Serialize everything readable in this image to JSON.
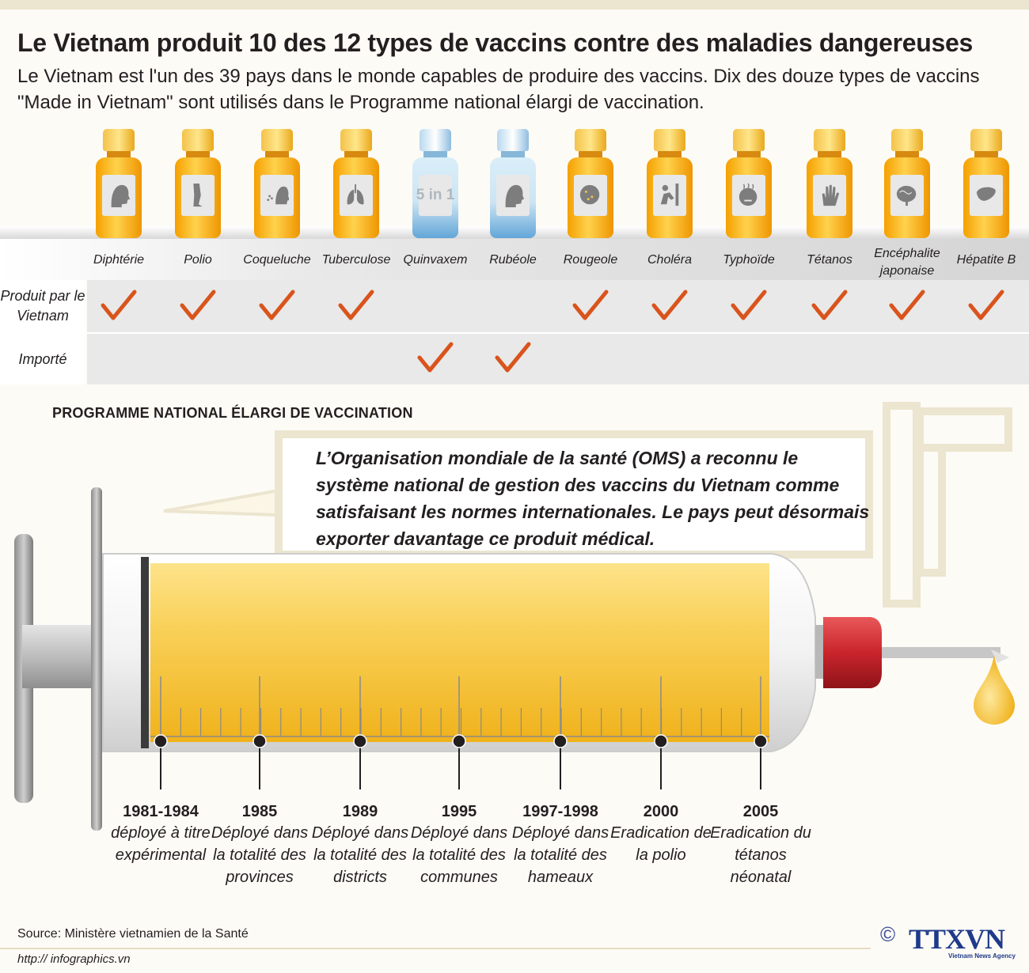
{
  "header": {
    "title": "Le Vietnam produit 10 des 12 types de vaccins contre des maladies dangereuses",
    "subtitle": "Le Vietnam est l'un des 39 pays dans le monde capables de produire des vaccins. Dix des douze types de vaccins \"Made in Vietnam\" sont utilisés dans le Programme national élargi de vaccination."
  },
  "vaccines": [
    {
      "name": "Diphtérie",
      "icon": "head-icon",
      "color": "orange",
      "produced": true,
      "imported": false
    },
    {
      "name": "Polio",
      "icon": "leg-icon",
      "color": "orange",
      "produced": true,
      "imported": false
    },
    {
      "name": "Coqueluche",
      "icon": "cough-icon",
      "color": "orange",
      "produced": true,
      "imported": false
    },
    {
      "name": "Tuberculose",
      "icon": "lungs-icon",
      "color": "orange",
      "produced": true,
      "imported": false
    },
    {
      "name": "Quinvaxem",
      "label_text": "5 in 1",
      "color": "blue",
      "produced": false,
      "imported": true
    },
    {
      "name": "Rubéole",
      "icon": "head-icon",
      "color": "blue",
      "produced": false,
      "imported": true
    },
    {
      "name": "Rougeole",
      "icon": "spotted-face-icon",
      "color": "orange",
      "produced": true,
      "imported": false
    },
    {
      "name": "Choléra",
      "icon": "sick-person-icon",
      "color": "orange",
      "produced": true,
      "imported": false
    },
    {
      "name": "Typhoïde",
      "icon": "fever-face-icon",
      "color": "orange",
      "produced": true,
      "imported": false
    },
    {
      "name": "Tétanos",
      "icon": "hand-icon",
      "color": "orange",
      "produced": true,
      "imported": false
    },
    {
      "name": "Encéphalite japonaise",
      "icon": "brain-icon",
      "color": "orange",
      "produced": true,
      "imported": false
    },
    {
      "name": "Hépatite B",
      "icon": "liver-icon",
      "color": "orange",
      "produced": true,
      "imported": false
    }
  ],
  "rows": {
    "produced_label": "Produit par le Vietnam",
    "imported_label": "Importé"
  },
  "program": {
    "title": "PROGRAMME NATIONAL ÉLARGI DE VACCINATION",
    "callout": "L’Organisation mondiale de la santé (OMS) a reconnu le système national de gestion des vaccins du Vietnam comme satisfaisant les normes internationales. Le pays peut désormais exporter davantage ce produit médical.",
    "milestones": [
      {
        "year": "1981-1984",
        "desc": "déployé à titre expérimental"
      },
      {
        "year": "1985",
        "desc": "Déployé dans la totalité des provinces"
      },
      {
        "year": "1989",
        "desc": "Déployé dans la totalité des districts"
      },
      {
        "year": "1995",
        "desc": "Déployé dans la totalité des communes"
      },
      {
        "year": "1997-1998",
        "desc": "Déployé dans la totalité des hameaux"
      },
      {
        "year": "2000",
        "desc": "Eradication de la polio"
      },
      {
        "year": "2005",
        "desc": "Eradication du tétanos néonatal"
      }
    ]
  },
  "footer": {
    "source": "Source: Ministère vietnamien de la Santé",
    "url": "http:// infographics.vn",
    "logo_copyright": "©",
    "logo_text": "TTXVN",
    "logo_sub": "Vietnam News Agency"
  },
  "colors": {
    "check": "#d9541c",
    "vial_orange": "#f5a000",
    "vial_blue": "#62a6d8",
    "syringe_fill": "#f6c233",
    "needle_cap": "#c9252c"
  }
}
